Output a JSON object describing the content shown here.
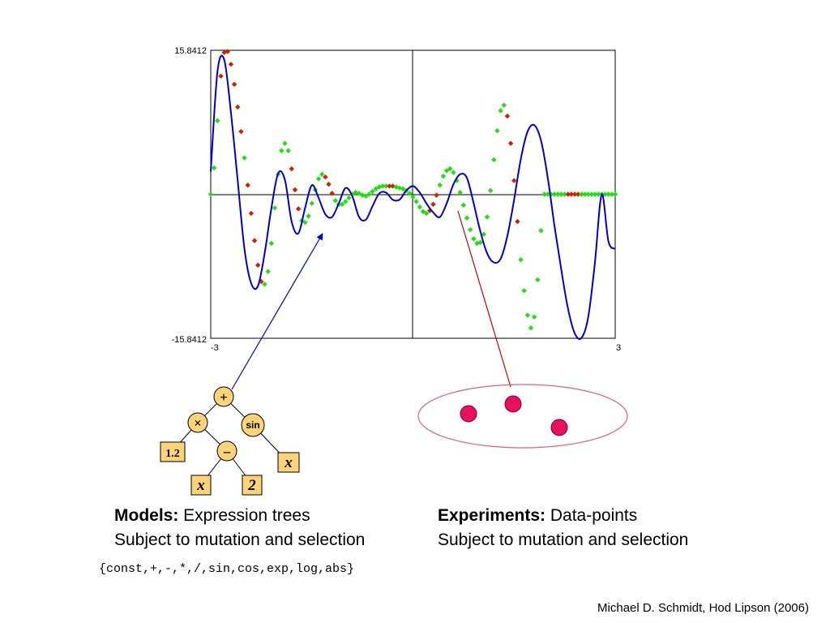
{
  "chart_data": {
    "type": "line",
    "xlim": [
      -3,
      3
    ],
    "ylim": [
      -15.8412,
      15.8412
    ],
    "x_tick_labels": [
      "-3",
      "3"
    ],
    "y_tick_labels": [
      "15.8412",
      "-15.8412"
    ],
    "grid": false,
    "series": [
      {
        "kind": "model_curve",
        "color": "#0000cc",
        "x": [
          -3.0,
          -2.9,
          -2.8,
          -2.7,
          -2.6,
          -2.5,
          -2.4,
          -2.3,
          -2.2,
          -2.1,
          -2.0,
          -1.9,
          -1.8,
          -1.7,
          -1.6,
          -1.5,
          -1.4,
          -1.3,
          -1.2,
          -1.1,
          -1.0,
          -0.9,
          -0.8,
          -0.7,
          -0.6,
          -0.5,
          -0.4,
          -0.3,
          -0.2,
          -0.1,
          0.0,
          0.1,
          0.2,
          0.3,
          0.4,
          0.5,
          0.6,
          0.7,
          0.8,
          0.9,
          1.0,
          1.1,
          1.2,
          1.3,
          1.4,
          1.5,
          1.6,
          1.7,
          1.8,
          1.9,
          2.0,
          2.1,
          2.2,
          2.3,
          2.4,
          2.5,
          2.6,
          2.7,
          2.8,
          2.9,
          3.0
        ],
        "y": [
          2.5,
          13.5,
          14.8,
          9.0,
          1.5,
          -6.0,
          -9.8,
          -10.1,
          -6.5,
          -1.5,
          2.3,
          1.6,
          -3.0,
          -4.3,
          -1.5,
          1.0,
          -0.4,
          -2.2,
          -2.5,
          -1.0,
          0.7,
          -0.2,
          -2.5,
          -2.8,
          -1.3,
          0.1,
          0.2,
          -0.6,
          -0.6,
          0.4,
          0.9,
          0.2,
          -1.0,
          -2.0,
          -2.5,
          -1.0,
          1.1,
          2.2,
          1.8,
          -1.0,
          -4.1,
          -6.5,
          -7.5,
          -7.1,
          -4.6,
          -0.6,
          3.9,
          6.9,
          7.6,
          5.9,
          1.8,
          -3.5,
          -8.3,
          -12.6,
          -15.3,
          -15.8,
          -13.5,
          -7.5,
          0.0,
          -5.2,
          -6.0
        ]
      },
      {
        "kind": "data_points",
        "color_good": "#22dd11",
        "color_bad": "#cc2200",
        "x": [
          -3.0,
          -2.95,
          -2.9,
          -2.85,
          -2.8,
          -2.75,
          -2.7,
          -2.65,
          -2.6,
          -2.55,
          -2.5,
          -2.45,
          -2.4,
          -2.35,
          -2.3,
          -2.25,
          -2.2,
          -2.15,
          -2.1,
          -2.05,
          -2.0,
          -1.95,
          -1.9,
          -1.85,
          -1.8,
          -1.75,
          -1.7,
          -1.65,
          -1.6,
          -1.55,
          -1.5,
          -1.45,
          -1.4,
          -1.35,
          -1.3,
          -1.25,
          -1.2,
          -1.15,
          -1.1,
          -1.05,
          -1.0,
          -0.95,
          -0.9,
          -0.85,
          -0.8,
          -0.75,
          -0.7,
          -0.65,
          -0.6,
          -0.55,
          -0.5,
          -0.45,
          -0.4,
          -0.35,
          -0.3,
          -0.25,
          -0.2,
          -0.15,
          -0.1,
          -0.05,
          0.0,
          0.05,
          0.1,
          0.15,
          0.2,
          0.25,
          0.3,
          0.35,
          0.4,
          0.45,
          0.5,
          0.55,
          0.6,
          0.65,
          0.7,
          0.75,
          0.8,
          0.85,
          0.9,
          0.95,
          1.0,
          1.05,
          1.1,
          1.15,
          1.2,
          1.25,
          1.3,
          1.35,
          1.4,
          1.45,
          1.5,
          1.55,
          1.6,
          1.65,
          1.7,
          1.75,
          1.8,
          1.85,
          1.9,
          1.95,
          2.0,
          2.05,
          2.1,
          2.15,
          2.2,
          2.25,
          2.3,
          2.35,
          2.4,
          2.45,
          2.5,
          2.55,
          2.6,
          2.65,
          2.7,
          2.75,
          2.8,
          2.85,
          2.9,
          2.95,
          3.0
        ],
        "y": [
          0.0,
          2.9,
          8.1,
          13.0,
          15.6,
          15.7,
          14.3,
          12.1,
          9.6,
          6.9,
          4.0,
          1.0,
          -2.1,
          -5.1,
          -7.8,
          -9.6,
          -9.9,
          -8.5,
          -5.4,
          -1.5,
          2.2,
          4.8,
          5.6,
          4.8,
          2.8,
          0.5,
          -1.6,
          -2.9,
          -3.1,
          -2.4,
          -1.0,
          0.5,
          1.7,
          2.2,
          1.9,
          1.1,
          0.1,
          -0.7,
          -1.1,
          -1.1,
          -0.8,
          -0.4,
          0.0,
          0.2,
          0.1,
          -0.1,
          -0.2,
          0.0,
          0.3,
          0.6,
          0.8,
          0.9,
          0.9,
          0.9,
          0.9,
          0.8,
          0.7,
          0.6,
          0.4,
          0.1,
          -0.3,
          -0.8,
          -1.4,
          -1.9,
          -2.1,
          -1.8,
          -1.1,
          -0.1,
          1.0,
          2.0,
          2.6,
          2.8,
          2.4,
          1.5,
          0.2,
          -1.2,
          -2.6,
          -3.9,
          -4.9,
          -5.4,
          -5.3,
          -4.4,
          -2.5,
          0.4,
          3.8,
          7.0,
          9.2,
          9.8,
          8.6,
          5.6,
          1.5,
          -3.0,
          -7.2,
          -10.6,
          -13.3,
          -14.7,
          -13.5,
          -9.4,
          -4.0,
          0.0,
          0.0,
          0.0,
          0.0,
          0.0,
          0.0,
          0.0,
          0.0,
          0.0,
          0.0,
          0.0,
          0.0,
          0.0,
          0.0,
          0.0,
          0.0,
          0.0,
          0.0,
          0.0,
          0.0,
          0.0,
          0.0
        ]
      }
    ]
  },
  "tree": {
    "root": "+",
    "mul": "×",
    "sin": "sin",
    "minus": "–",
    "const": "1.2",
    "x_left": "x",
    "two": "2",
    "x_right": "x"
  },
  "captions": {
    "models_bold": "Models:",
    "models_rest": " Expression trees",
    "models_line2": "Subject to mutation and selection",
    "experiments_bold": "Experiments:",
    "experiments_rest": " Data-points",
    "experiments_line2": "Subject to mutation and selection"
  },
  "operators": "{const,+,-,*,/,sin,cos,exp,log,abs}",
  "citation": "Michael D. Schmidt, Hod Lipson (2006)",
  "colors": {
    "tree_node_fill": "#fdd37a",
    "experiment_dot": "#e8115f",
    "experiment_ellipse": "#e0607a",
    "arrow_blue": "#0000cc",
    "arrow_red": "#cc0000"
  }
}
